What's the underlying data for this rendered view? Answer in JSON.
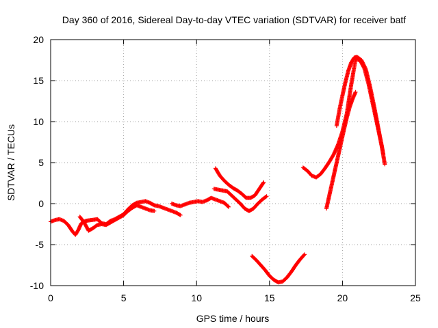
{
  "chart_data": {
    "type": "scatter",
    "title": "Day 360 of 2016, Sidereal Day-to-day VTEC variation (SDTVAR) for receiver batf",
    "xlabel": "GPS time / hours",
    "ylabel": "SDTVAR / TECUs",
    "xlim": [
      0,
      25
    ],
    "ylim": [
      -10,
      20
    ],
    "xticks": [
      0,
      5,
      10,
      15,
      20,
      25
    ],
    "yticks": [
      -10,
      -5,
      0,
      5,
      10,
      15,
      20
    ],
    "grid": true,
    "marker": "plus",
    "color": "#ff0000",
    "series": [
      {
        "x": [
          0.0,
          0.3,
          0.6,
          0.9,
          1.2,
          1.5,
          1.7,
          1.9,
          2.1,
          2.4,
          2.8,
          3.2,
          3.5,
          3.8,
          4.1,
          4.4,
          4.7,
          5.0,
          5.3,
          5.6,
          5.9,
          6.2,
          6.5,
          6.8,
          7.1,
          7.4,
          7.7,
          8.0,
          8.3,
          8.6,
          8.9
        ],
        "y": [
          -2.2,
          -2.0,
          -1.9,
          -2.1,
          -2.6,
          -3.4,
          -3.8,
          -3.2,
          -2.4,
          -2.1,
          -2.0,
          -1.9,
          -2.4,
          -2.5,
          -2.1,
          -1.9,
          -1.6,
          -1.3,
          -0.7,
          -0.2,
          0.1,
          0.2,
          0.3,
          0.1,
          -0.2,
          -0.3,
          -0.5,
          -0.7,
          -0.9,
          -1.1,
          -1.4
        ]
      },
      {
        "x": [
          2.0,
          2.3,
          2.6,
          2.9,
          3.2,
          3.5,
          3.8,
          4.1,
          4.4,
          4.7,
          5.0,
          5.3,
          5.6,
          5.9,
          6.2,
          6.5,
          6.8,
          7.1
        ],
        "y": [
          -1.6,
          -2.3,
          -3.3,
          -3.0,
          -2.6,
          -2.5,
          -2.6,
          -2.3,
          -2.0,
          -1.7,
          -1.4,
          -0.9,
          -0.5,
          -0.2,
          -0.4,
          -0.6,
          -0.8,
          -0.9
        ]
      },
      {
        "x": [
          8.3,
          8.6,
          8.9,
          9.2,
          9.5,
          9.8,
          10.1,
          10.4,
          10.7,
          11.0,
          11.3,
          11.6,
          11.9,
          12.2
        ],
        "y": [
          0.0,
          -0.2,
          -0.3,
          -0.1,
          0.1,
          0.2,
          0.3,
          0.2,
          0.4,
          0.7,
          0.5,
          0.3,
          0.1,
          -0.4
        ]
      },
      {
        "x": [
          11.2,
          11.5,
          11.8,
          12.1,
          12.4,
          12.7,
          13.0,
          13.3,
          13.6,
          13.9,
          14.2,
          14.5,
          14.8
        ],
        "y": [
          1.8,
          1.7,
          1.6,
          1.5,
          1.0,
          0.5,
          0.0,
          -0.6,
          -0.9,
          -0.6,
          0.0,
          0.5,
          0.9
        ]
      },
      {
        "x": [
          11.3,
          11.6,
          11.9,
          12.2,
          12.5,
          12.8,
          13.1,
          13.4,
          13.7,
          14.0,
          14.3,
          14.6
        ],
        "y": [
          4.3,
          3.4,
          2.8,
          2.3,
          1.9,
          1.6,
          1.2,
          0.7,
          0.7,
          1.0,
          1.8,
          2.6
        ]
      },
      {
        "x": [
          13.8,
          14.1,
          14.4,
          14.7,
          15.0,
          15.3,
          15.6,
          15.9,
          16.2,
          16.5,
          16.8,
          17.1,
          17.4
        ],
        "y": [
          -6.4,
          -6.9,
          -7.5,
          -8.1,
          -8.8,
          -9.3,
          -9.6,
          -9.5,
          -9.0,
          -8.3,
          -7.5,
          -6.8,
          -6.2
        ]
      },
      {
        "x": [
          17.3,
          17.6,
          17.9,
          18.2,
          18.5,
          18.8,
          19.1,
          19.4,
          19.7,
          20.0,
          20.3,
          20.6,
          20.9,
          21.2,
          21.5,
          21.8,
          22.1,
          22.4,
          22.7,
          22.9
        ],
        "y": [
          4.4,
          4.0,
          3.4,
          3.2,
          3.6,
          4.3,
          5.1,
          6.0,
          7.2,
          8.8,
          11.0,
          14.5,
          17.6,
          17.5,
          16.5,
          14.5,
          12.0,
          9.5,
          7.0,
          4.8
        ]
      },
      {
        "x": [
          18.9,
          19.1,
          19.3,
          19.5,
          19.7,
          19.9,
          20.1,
          20.3,
          20.5,
          20.7,
          20.9
        ],
        "y": [
          -0.6,
          1.0,
          2.6,
          4.2,
          5.8,
          7.4,
          9.0,
          10.5,
          11.8,
          12.8,
          13.6
        ]
      },
      {
        "x": [
          19.6,
          19.8,
          20.0,
          20.2,
          20.4,
          20.6,
          20.8,
          21.0,
          21.3,
          21.6,
          21.9,
          22.2,
          22.5,
          22.8
        ],
        "y": [
          9.5,
          11.5,
          13.2,
          14.8,
          16.2,
          17.2,
          17.8,
          17.9,
          17.5,
          16.4,
          14.2,
          11.6,
          8.8,
          6.0
        ]
      }
    ]
  }
}
